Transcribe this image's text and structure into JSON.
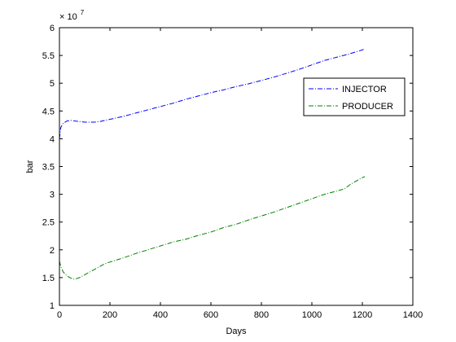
{
  "chart_data": {
    "type": "line",
    "title": "",
    "xlabel": "Days",
    "ylabel": "bar",
    "xlim": [
      0,
      1400
    ],
    "ylim": [
      1,
      6
    ],
    "xticks": [
      0,
      200,
      400,
      600,
      800,
      1000,
      1200,
      1400
    ],
    "yticks": [
      1,
      1.5,
      2,
      2.5,
      3,
      3.5,
      4,
      4.5,
      5,
      5.5,
      6
    ],
    "xtick_labels": [
      "0",
      "200",
      "400",
      "600",
      "800",
      "1000",
      "1200",
      "1400"
    ],
    "ytick_labels": [
      "1",
      "1.5",
      "2",
      "2.5",
      "3",
      "3.5",
      "4",
      "4.5",
      "5",
      "5.5",
      "6"
    ],
    "y_multiplier": "× 10",
    "y_multiplier_exp": "7",
    "grid": false,
    "legend_position": "top-right",
    "series": [
      {
        "name": "INJECTOR",
        "color": "#0000ff",
        "x": [
          0,
          5,
          15,
          30,
          45,
          60,
          80,
          100,
          120,
          140,
          160,
          180,
          200,
          250,
          300,
          350,
          400,
          450,
          500,
          550,
          600,
          650,
          700,
          750,
          800,
          850,
          900,
          950,
          1000,
          1050,
          1100,
          1150,
          1200,
          1210
        ],
        "y": [
          4.0,
          4.2,
          4.28,
          4.32,
          4.33,
          4.32,
          4.31,
          4.3,
          4.3,
          4.3,
          4.31,
          4.33,
          4.35,
          4.4,
          4.46,
          4.52,
          4.58,
          4.64,
          4.71,
          4.77,
          4.83,
          4.88,
          4.94,
          4.99,
          5.05,
          5.11,
          5.18,
          5.25,
          5.33,
          5.41,
          5.47,
          5.53,
          5.6,
          5.62
        ]
      },
      {
        "name": "PRODUCER",
        "color": "#008000",
        "x": [
          0,
          5,
          15,
          30,
          45,
          60,
          80,
          100,
          120,
          140,
          160,
          180,
          200,
          250,
          300,
          350,
          400,
          450,
          500,
          550,
          600,
          650,
          700,
          750,
          800,
          850,
          900,
          950,
          1000,
          1050,
          1100,
          1130,
          1150,
          1180,
          1200,
          1210
        ],
        "y": [
          1.8,
          1.7,
          1.6,
          1.53,
          1.49,
          1.47,
          1.5,
          1.55,
          1.6,
          1.65,
          1.7,
          1.75,
          1.78,
          1.85,
          1.93,
          2.0,
          2.07,
          2.14,
          2.19,
          2.26,
          2.32,
          2.4,
          2.46,
          2.54,
          2.61,
          2.68,
          2.76,
          2.84,
          2.92,
          3.0,
          3.06,
          3.1,
          3.17,
          3.25,
          3.3,
          3.32
        ]
      }
    ]
  }
}
